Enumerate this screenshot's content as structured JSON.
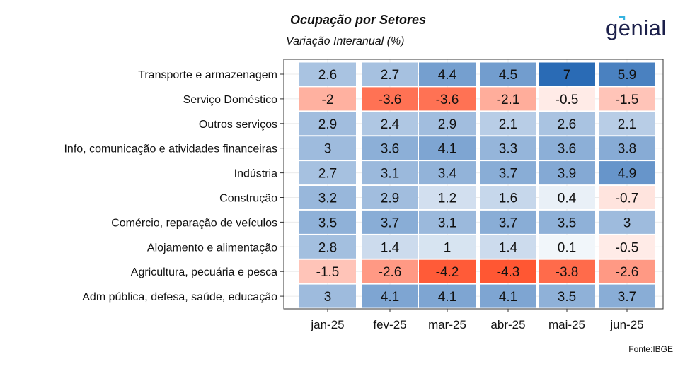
{
  "title": "Ocupação por Setores",
  "subtitle": "Variação Interanual (%)",
  "logo_text": "genial",
  "source": "Fonte:IBGE",
  "chart_data": {
    "type": "heatmap",
    "columns": [
      "jan-25",
      "fev-25",
      "mar-25",
      "abr-25",
      "mai-25",
      "jun-25"
    ],
    "rows": [
      "Transporte e armazenagem",
      "Serviço Doméstico",
      "Outros serviços",
      "Info, comunicação e atividades financeiras",
      "Indústria",
      "Construção",
      "Comércio, reparação de veículos",
      "Alojamento e alimentação",
      "Agricultura, pecuária e pesca",
      "Adm pública, defesa, saúde, educação"
    ],
    "values": [
      [
        2.6,
        2.7,
        4.4,
        4.5,
        7,
        5.9
      ],
      [
        -2,
        -3.6,
        -3.6,
        -2.1,
        -0.5,
        -1.5
      ],
      [
        2.9,
        2.4,
        2.9,
        2.1,
        2.6,
        2.1
      ],
      [
        3,
        3.6,
        4.1,
        3.3,
        3.6,
        3.8
      ],
      [
        2.7,
        3.1,
        3.4,
        3.7,
        3.9,
        4.9
      ],
      [
        3.2,
        2.9,
        1.2,
        1.6,
        0.4,
        -0.7
      ],
      [
        3.5,
        3.7,
        3.1,
        3.7,
        3.5,
        3
      ],
      [
        2.8,
        1.4,
        1,
        1.4,
        0.1,
        -0.5
      ],
      [
        -1.5,
        -2.6,
        -4.2,
        -4.3,
        -3.8,
        -2.6
      ],
      [
        3,
        4.1,
        4.1,
        4.1,
        3.5,
        3.7
      ]
    ],
    "color_scale": {
      "negative": "#ff5733",
      "zero": "#ffffff",
      "positive": "#2a6bb5"
    },
    "grid": true,
    "legend": "none"
  }
}
